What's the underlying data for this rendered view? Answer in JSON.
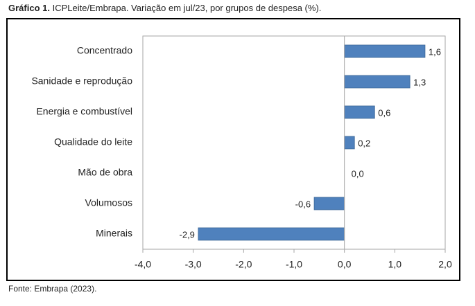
{
  "chart_data": {
    "type": "bar",
    "orientation": "horizontal",
    "title_label": "Gráfico 1.",
    "title": "ICPLeite/Embrapa. Variação em jul/23, por grupos de despesa (%).",
    "source": "Fonte: Embrapa (2023).",
    "categories": [
      "Concentrado",
      "Sanidade e reprodução",
      "Energia e combustível",
      "Qualidade do leite",
      "Mão de obra",
      "Volumosos",
      "Minerais"
    ],
    "values": [
      1.6,
      1.3,
      0.6,
      0.2,
      0.0,
      -0.6,
      -2.9
    ],
    "value_labels": [
      "1,6",
      "1,3",
      "0,6",
      "0,2",
      "0,0",
      "-0,6",
      "-2,9"
    ],
    "color": "#4f81bd",
    "xlim": [
      -4,
      2
    ],
    "xticks": [
      {
        "value": -4,
        "label": "-4,0"
      },
      {
        "value": -3,
        "label": "-3,0"
      },
      {
        "value": -2,
        "label": "-2,0"
      },
      {
        "value": -1,
        "label": "-1,0"
      },
      {
        "value": 0,
        "label": "0,0"
      },
      {
        "value": 1,
        "label": "1,0"
      },
      {
        "value": 2,
        "label": "2,0"
      }
    ],
    "grid": false
  }
}
